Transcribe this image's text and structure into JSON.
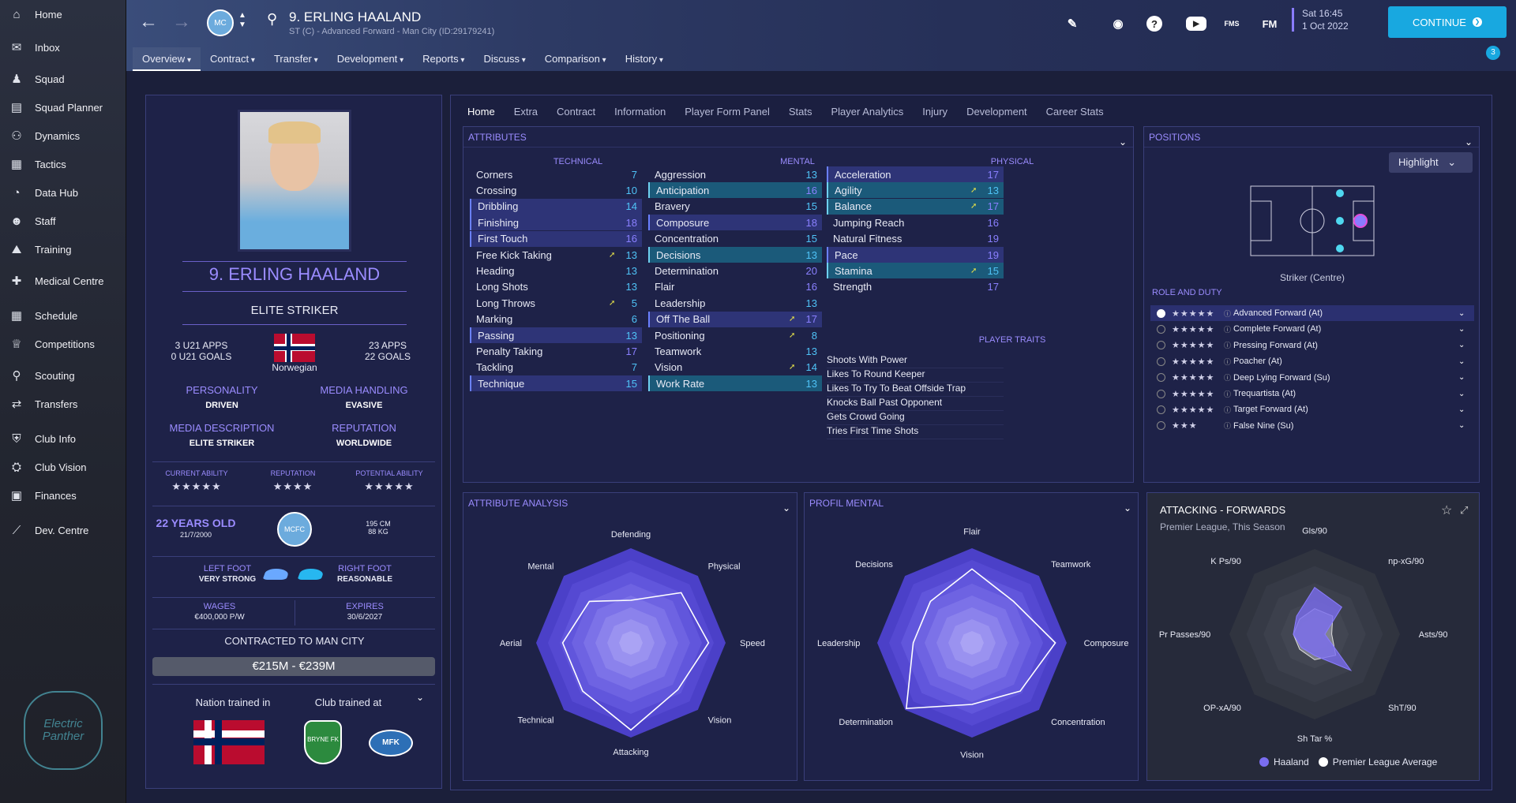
{
  "sidebar": {
    "items": [
      {
        "label": "Home",
        "icon": "home-icon"
      },
      {
        "label": "Inbox",
        "icon": "inbox-icon"
      },
      {
        "label": "Squad",
        "icon": "squad-icon"
      },
      {
        "label": "Squad Planner",
        "icon": "planner-icon"
      },
      {
        "label": "Dynamics",
        "icon": "dynamics-icon"
      },
      {
        "label": "Tactics",
        "icon": "tactics-icon"
      },
      {
        "label": "Data Hub",
        "icon": "datahub-icon"
      },
      {
        "label": "Staff",
        "icon": "staff-icon"
      },
      {
        "label": "Training",
        "icon": "training-icon"
      },
      {
        "label": "Medical Centre",
        "icon": "medical-icon"
      },
      {
        "label": "Schedule",
        "icon": "schedule-icon"
      },
      {
        "label": "Competitions",
        "icon": "trophy-icon"
      },
      {
        "label": "Scouting",
        "icon": "scouting-icon"
      },
      {
        "label": "Transfers",
        "icon": "transfers-icon"
      },
      {
        "label": "Club Info",
        "icon": "shield-icon"
      },
      {
        "label": "Club Vision",
        "icon": "vision-icon"
      },
      {
        "label": "Finances",
        "icon": "finances-icon"
      },
      {
        "label": "Dev. Centre",
        "icon": "dev-icon"
      }
    ],
    "logo_text": "Electric Panther"
  },
  "header": {
    "title": "9. ERLING HAALAND",
    "subtitle": "ST (C) - Advanced Forward - Man City (ID:29179241)",
    "date_time": "Sat 16:45",
    "date": "1 Oct 2022",
    "continue_label": "CONTINUE",
    "fm_label": "FM",
    "fms_label": "FMS",
    "badge_count": "3",
    "tabs": [
      "Overview",
      "Contract",
      "Transfer",
      "Development",
      "Reports",
      "Discuss",
      "Comparison",
      "History"
    ]
  },
  "profile": {
    "name": "9. ERLING HAALAND",
    "role": "ELITE STRIKER",
    "u21_apps": "3 U21 APPS",
    "u21_goals": "0 U21 GOALS",
    "nationality": "Norwegian",
    "apps": "23 APPS",
    "goals": "22 GOALS",
    "personality_label": "PERSONALITY",
    "personality": "DRIVEN",
    "media_handling_label": "MEDIA HANDLING",
    "media_handling": "EVASIVE",
    "media_desc_label": "MEDIA DESCRIPTION",
    "media_desc": "ELITE STRIKER",
    "reputation_label": "REPUTATION",
    "reputation": "WORLDWIDE",
    "ca_label": "CURRENT ABILITY",
    "ca_stars": "★★★★★",
    "rep_label": "REPUTATION",
    "rep_stars": "★★★★",
    "pa_label": "POTENTIAL ABILITY",
    "pa_stars": "★★★★★",
    "age": "22 YEARS OLD",
    "dob": "21/7/2000",
    "height": "195 CM",
    "weight": "88 KG",
    "left_foot_label": "LEFT FOOT",
    "left_foot": "VERY STRONG",
    "right_foot_label": "RIGHT FOOT",
    "right_foot": "REASONABLE",
    "wages_label": "WAGES",
    "wages": "€400,000 P/W",
    "expires_label": "EXPIRES",
    "expires": "30/6/2027",
    "contracted": "CONTRACTED TO MAN CITY",
    "value": "€215M - €239M",
    "nation_trained": "Nation trained in",
    "club_trained": "Club trained at"
  },
  "tabs2": [
    "Home",
    "Extra",
    "Contract",
    "Information",
    "Player Form Panel",
    "Stats",
    "Player Analytics",
    "Injury",
    "Development",
    "Career Stats"
  ],
  "attributes": {
    "title": "ATTRIBUTES",
    "technical_label": "TECHNICAL",
    "mental_label": "MENTAL",
    "physical_label": "PHYSICAL",
    "traits_label": "PLAYER TRAITS",
    "technical": [
      {
        "n": "Corners",
        "v": "7"
      },
      {
        "n": "Crossing",
        "v": "10"
      },
      {
        "n": "Dribbling",
        "v": "14"
      },
      {
        "n": "Finishing",
        "v": "18"
      },
      {
        "n": "First Touch",
        "v": "16"
      },
      {
        "n": "Free Kick Taking",
        "v": "13"
      },
      {
        "n": "Heading",
        "v": "13"
      },
      {
        "n": "Long Shots",
        "v": "13"
      },
      {
        "n": "Long Throws",
        "v": "5"
      },
      {
        "n": "Marking",
        "v": "6"
      },
      {
        "n": "Passing",
        "v": "13"
      },
      {
        "n": "Penalty Taking",
        "v": "17"
      },
      {
        "n": "Tackling",
        "v": "7"
      },
      {
        "n": "Technique",
        "v": "15"
      }
    ],
    "mental": [
      {
        "n": "Aggression",
        "v": "13"
      },
      {
        "n": "Anticipation",
        "v": "16"
      },
      {
        "n": "Bravery",
        "v": "15"
      },
      {
        "n": "Composure",
        "v": "18"
      },
      {
        "n": "Concentration",
        "v": "15"
      },
      {
        "n": "Decisions",
        "v": "13"
      },
      {
        "n": "Determination",
        "v": "20"
      },
      {
        "n": "Flair",
        "v": "16"
      },
      {
        "n": "Leadership",
        "v": "13"
      },
      {
        "n": "Off The Ball",
        "v": "17"
      },
      {
        "n": "Positioning",
        "v": "8"
      },
      {
        "n": "Teamwork",
        "v": "13"
      },
      {
        "n": "Vision",
        "v": "14"
      },
      {
        "n": "Work Rate",
        "v": "13"
      }
    ],
    "physical": [
      {
        "n": "Acceleration",
        "v": "17"
      },
      {
        "n": "Agility",
        "v": "13"
      },
      {
        "n": "Balance",
        "v": "17"
      },
      {
        "n": "Jumping Reach",
        "v": "16"
      },
      {
        "n": "Natural Fitness",
        "v": "19"
      },
      {
        "n": "Pace",
        "v": "19"
      },
      {
        "n": "Stamina",
        "v": "15"
      },
      {
        "n": "Strength",
        "v": "17"
      }
    ],
    "traits": [
      "Shoots With Power",
      "Likes To Round Keeper",
      "Likes To Try To Beat Offside Trap",
      "Knocks Ball Past Opponent",
      "Gets Crowd Going",
      "Tries First Time Shots"
    ]
  },
  "positions": {
    "title": "POSITIONS",
    "highlight": "Highlight",
    "pos_label": "Striker (Centre)",
    "role_duty_label": "ROLE AND DUTY",
    "roles": [
      {
        "stars": "★★★★★",
        "name": "Advanced Forward (At)"
      },
      {
        "stars": "★★★★★",
        "name": "Complete Forward (At)"
      },
      {
        "stars": "★★★★★",
        "name": "Pressing Forward (At)"
      },
      {
        "stars": "★★★★★",
        "name": "Poacher (At)"
      },
      {
        "stars": "★★★★★",
        "name": "Deep Lying Forward (Su)"
      },
      {
        "stars": "★★★★★",
        "name": "Trequartista (At)"
      },
      {
        "stars": "★★★★★",
        "name": "Target Forward (At)"
      },
      {
        "stars": "★★★",
        "name": "False Nine (Su)"
      }
    ]
  },
  "radar1": {
    "title": "ATTRIBUTE ANALYSIS",
    "labels": [
      "Defending",
      "Physical",
      "Speed",
      "Vision",
      "Attacking",
      "Technical",
      "Aerial",
      "Mental"
    ],
    "values": [
      0.45,
      0.75,
      0.82,
      0.7,
      0.92,
      0.72,
      0.72,
      0.62
    ]
  },
  "radar2": {
    "title": "PROFIL MENTAL",
    "labels": [
      "Flair",
      "Teamwork",
      "Composure",
      "Concentration",
      "Vision",
      "Determination",
      "Leadership",
      "Decisions"
    ],
    "values": [
      0.78,
      0.62,
      0.88,
      0.72,
      0.65,
      0.98,
      0.62,
      0.62
    ]
  },
  "radar3": {
    "title": "ATTACKING - FORWARDS",
    "subtitle": "Premier League, This Season",
    "labels": [
      "Gls/90",
      "np-xG/90",
      "Asts/90",
      "ShT/90",
      "Sh Tar %",
      "OP-xA/90",
      "Pr Passes/90",
      "K Ps/90"
    ],
    "legend": [
      "Haaland",
      "Premier League Average"
    ],
    "player": [
      0.55,
      0.45,
      0.12,
      0.6,
      0.25,
      0.22,
      0.25,
      0.3
    ],
    "average": [
      0.3,
      0.3,
      0.2,
      0.35,
      0.3,
      0.25,
      0.25,
      0.25
    ]
  },
  "colors": {
    "accent": "#9b8cff",
    "blue": "#4fc3f7",
    "continue": "#18a8e0"
  }
}
